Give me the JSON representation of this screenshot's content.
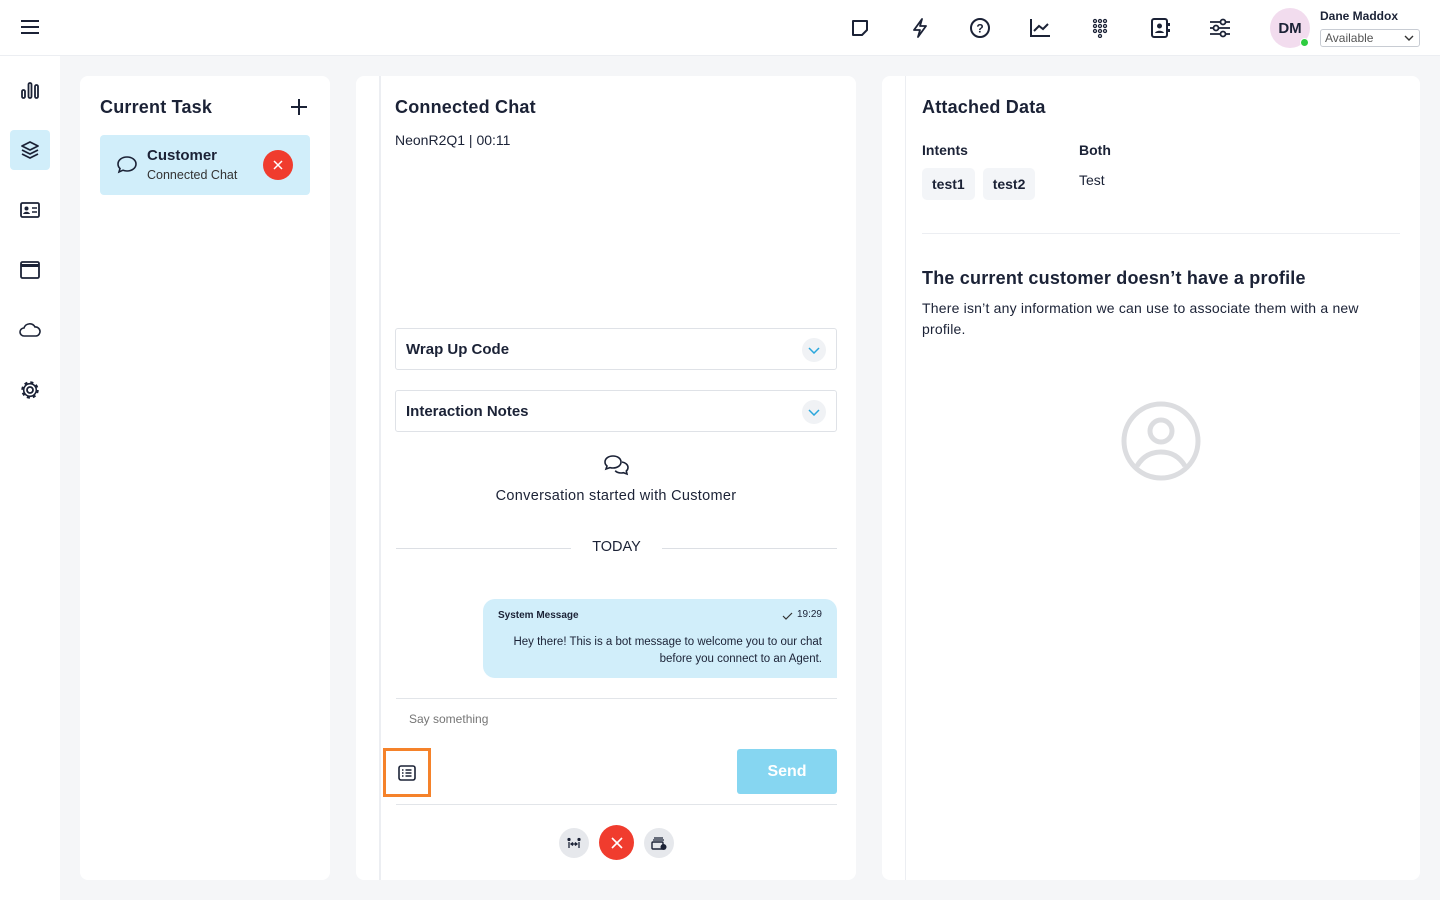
{
  "header": {
    "user_name": "Dane Maddox",
    "initials": "DM",
    "status": "Available",
    "status_color": "#2ecc40",
    "icons": [
      "sticky-note-icon",
      "lightning-icon",
      "help-icon",
      "chart-line-icon",
      "dialpad-icon",
      "contacts-book-icon",
      "sliders-icon"
    ]
  },
  "sidebar": {
    "items": [
      "bar-chart-icon",
      "layers-icon",
      "id-card-icon",
      "browser-window-icon",
      "cloud-icon",
      "gear-icon"
    ]
  },
  "current_task": {
    "title": "Current Task",
    "task": {
      "name": "Customer",
      "subtitle": "Connected Chat"
    }
  },
  "chat": {
    "title": "Connected Chat",
    "subtitle": "NeonR2Q1 | 00:11",
    "wrap_up": "Wrap Up Code",
    "notes": "Interaction Notes",
    "conversation_started": "Conversation started with Customer",
    "date_divider": "TODAY",
    "message": {
      "sender": "System Message",
      "time": "19:29",
      "text": "Hey there! This is a bot message to welcome you to our chat before you connect to an Agent."
    },
    "input_placeholder": "Say something",
    "send_label": "Send"
  },
  "attached": {
    "title": "Attached Data",
    "intents_label": "Intents",
    "intents": [
      "test1",
      "test2"
    ],
    "both_label": "Both",
    "both_value": "Test",
    "no_profile_title": "The current customer doesn’t have a profile",
    "no_profile_text": "There isn’t any information we can use to associate them with a new profile."
  },
  "colors": {
    "accent": "#d1eefa",
    "danger": "#f03c2e",
    "send": "#86d6f1",
    "highlight": "#f5822a"
  }
}
